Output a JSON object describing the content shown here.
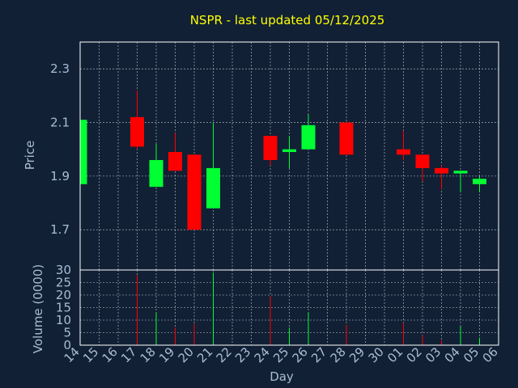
{
  "chart_data": {
    "type": "candlestick",
    "title": "NSPR - last updated 05/12/2025",
    "xlabel": "Day",
    "price_panel": {
      "ylabel": "Price",
      "ylim": [
        1.55,
        2.4
      ],
      "yticks": [
        "1.7",
        "1.9",
        "2.1",
        "2.3"
      ],
      "ytick_values": [
        1.7,
        1.9,
        2.1,
        2.3
      ],
      "grid": true
    },
    "volume_panel": {
      "ylabel": "Volume (0000)",
      "ylim": [
        0,
        30
      ],
      "yticks": [
        "0",
        "5",
        "10",
        "15",
        "20",
        "25",
        "30"
      ],
      "ytick_values": [
        0,
        5,
        10,
        15,
        20,
        25,
        30
      ],
      "grid": true
    },
    "x_labels": [
      "14",
      "15",
      "16",
      "17",
      "18",
      "19",
      "20",
      "21",
      "22",
      "23",
      "24",
      "25",
      "26",
      "27",
      "28",
      "29",
      "30",
      "01",
      "02",
      "03",
      "04",
      "05",
      "06"
    ],
    "candles": [
      {
        "day": "14",
        "open": 1.87,
        "close": 2.11,
        "high": 2.11,
        "low": 1.87
      },
      {
        "day": "17",
        "open": 2.12,
        "close": 2.01,
        "high": 2.22,
        "low": 2.0
      },
      {
        "day": "18",
        "open": 1.86,
        "close": 1.96,
        "high": 2.02,
        "low": 1.86
      },
      {
        "day": "19",
        "open": 1.99,
        "close": 1.92,
        "high": 2.06,
        "low": 1.92
      },
      {
        "day": "20",
        "open": 1.98,
        "close": 1.7,
        "high": 1.98,
        "low": 1.7
      },
      {
        "day": "21",
        "open": 1.78,
        "close": 1.93,
        "high": 2.1,
        "low": 1.78
      },
      {
        "day": "24",
        "open": 2.05,
        "close": 1.96,
        "high": 2.05,
        "low": 1.94
      },
      {
        "day": "25",
        "open": 1.99,
        "close": 2.0,
        "high": 2.05,
        "low": 1.93
      },
      {
        "day": "26",
        "open": 2.0,
        "close": 2.09,
        "high": 2.13,
        "low": 2.0
      },
      {
        "day": "28",
        "open": 2.1,
        "close": 1.98,
        "high": 2.1,
        "low": 1.98
      },
      {
        "day": "01",
        "open": 2.0,
        "close": 1.98,
        "high": 2.07,
        "low": 1.96
      },
      {
        "day": "02",
        "open": 1.98,
        "close": 1.93,
        "high": 1.98,
        "low": 1.88
      },
      {
        "day": "03",
        "open": 1.93,
        "close": 1.91,
        "high": 1.94,
        "low": 1.85
      },
      {
        "day": "04",
        "open": 1.91,
        "close": 1.92,
        "high": 1.92,
        "low": 1.84
      },
      {
        "day": "05",
        "open": 1.87,
        "close": 1.89,
        "high": 1.9,
        "low": 1.84
      }
    ],
    "volume": [
      {
        "day": "17",
        "value": 28,
        "direction": "down"
      },
      {
        "day": "18",
        "value": 13,
        "direction": "up"
      },
      {
        "day": "19",
        "value": 7,
        "direction": "down"
      },
      {
        "day": "20",
        "value": 8.5,
        "direction": "down"
      },
      {
        "day": "21",
        "value": 29,
        "direction": "up"
      },
      {
        "day": "24",
        "value": 19.5,
        "direction": "down"
      },
      {
        "day": "25",
        "value": 7,
        "direction": "up"
      },
      {
        "day": "26",
        "value": 13,
        "direction": "up"
      },
      {
        "day": "28",
        "value": 8,
        "direction": "down"
      },
      {
        "day": "01",
        "value": 9,
        "direction": "down"
      },
      {
        "day": "02",
        "value": 4,
        "direction": "down"
      },
      {
        "day": "03",
        "value": 2,
        "direction": "down"
      },
      {
        "day": "04",
        "value": 7.5,
        "direction": "up"
      },
      {
        "day": "05",
        "value": 3,
        "direction": "up"
      }
    ],
    "colors": {
      "background": "#112035",
      "grid": "#ffffff",
      "axis": "#ffffff",
      "up": "#00ff33",
      "down": "#ff0000",
      "title": "#ffff00",
      "text": "#a9bdd4"
    }
  }
}
